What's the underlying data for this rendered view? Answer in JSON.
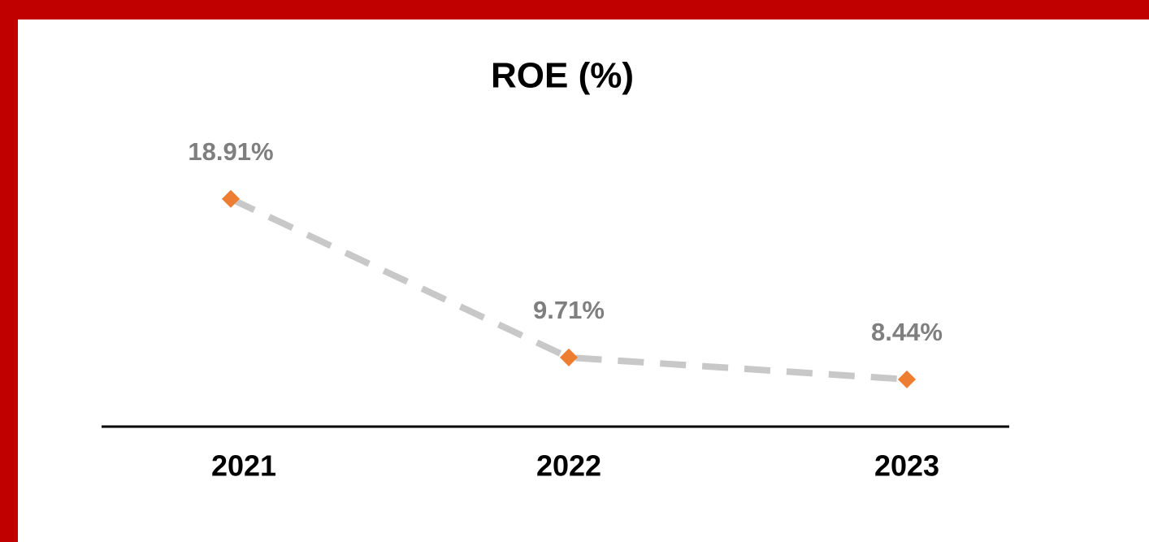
{
  "chart_data": {
    "type": "line",
    "title": "ROE (%)",
    "categories": [
      "2021",
      "2022",
      "2023"
    ],
    "values": [
      18.91,
      9.71,
      8.44
    ],
    "value_labels": [
      "18.91%",
      "9.71%",
      "8.44%"
    ],
    "color": "#ed7d31",
    "line_color": "#c8c8c8",
    "line_style": "dashed",
    "ylim": [
      5.7,
      20.5
    ]
  }
}
